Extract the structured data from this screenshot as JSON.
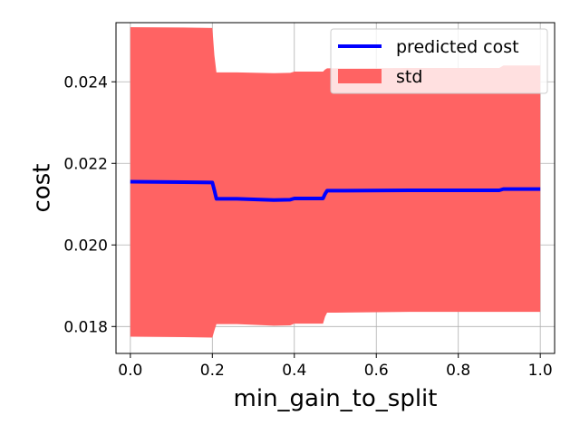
{
  "chart_data": {
    "type": "line",
    "title": "",
    "xlabel": "min_gain_to_split",
    "ylabel": "cost",
    "xlim": [
      -0.035,
      1.035
    ],
    "ylim": [
      0.01734,
      0.02545
    ],
    "grid": true,
    "legend_position": "top-right",
    "x_ticks": [
      {
        "value": 0.0,
        "label": "0.0"
      },
      {
        "value": 0.2,
        "label": "0.2"
      },
      {
        "value": 0.4,
        "label": "0.4"
      },
      {
        "value": 0.6,
        "label": "0.6"
      },
      {
        "value": 0.8,
        "label": "0.8"
      },
      {
        "value": 1.0,
        "label": "1.0"
      }
    ],
    "y_ticks": [
      {
        "value": 0.018,
        "label": "0.018"
      },
      {
        "value": 0.02,
        "label": "0.020"
      },
      {
        "value": 0.022,
        "label": "0.022"
      },
      {
        "value": 0.024,
        "label": "0.024"
      }
    ],
    "x": [
      0.0,
      0.13,
      0.2,
      0.205,
      0.21,
      0.26,
      0.35,
      0.39,
      0.4,
      0.47,
      0.475,
      0.48,
      0.5,
      0.68,
      0.9,
      0.91,
      1.0
    ],
    "series": [
      {
        "name": "predicted cost",
        "type": "line",
        "color": "#0000ff",
        "values": [
          0.02155,
          0.02154,
          0.02153,
          0.02134,
          0.02113,
          0.02113,
          0.0211,
          0.02111,
          0.02114,
          0.02114,
          0.02125,
          0.02133,
          0.02133,
          0.02134,
          0.02134,
          0.02137,
          0.02137
        ]
      },
      {
        "name": "std",
        "type": "band",
        "color": "#ff6363",
        "upper": [
          0.02534,
          0.02533,
          0.02532,
          0.02465,
          0.02423,
          0.02423,
          0.02421,
          0.02422,
          0.02425,
          0.02425,
          0.0243,
          0.02433,
          0.02433,
          0.02434,
          0.02434,
          0.0244,
          0.0244
        ],
        "lower": [
          0.01775,
          0.01774,
          0.01773,
          0.0179,
          0.01806,
          0.01806,
          0.01802,
          0.01803,
          0.01807,
          0.01807,
          0.01824,
          0.01834,
          0.01834,
          0.01836,
          0.01836,
          0.01836,
          0.01836
        ]
      }
    ]
  }
}
